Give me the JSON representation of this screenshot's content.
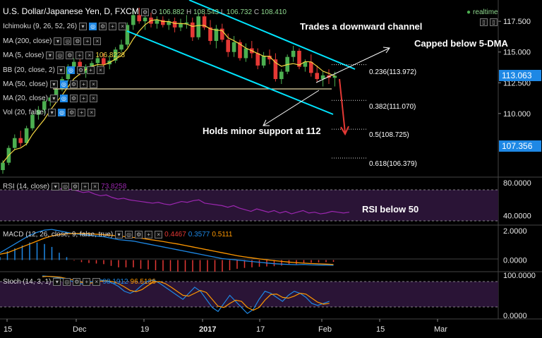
{
  "header": {
    "title": "U.S. Dollar/Japanese Yen, D, FXCM",
    "o_label": "O",
    "o_value": "106.882",
    "h_label": "H",
    "h_value": "108.543",
    "l_label": "L",
    "l_value": "106.732",
    "c_label": "C",
    "c_value": "108.410",
    "realtime": "realtime"
  },
  "indicators": {
    "ichimoku": "Ichimoku (9, 26, 52, 26)",
    "ma200": "MA (200, close)",
    "ma5": "MA (5, close)",
    "ma5_value": "106.8228",
    "bb": "BB (20, close, 2)",
    "ma50": "MA (50, close)",
    "ma20": "MA (20, close)",
    "vol": "Vol (20, false)"
  },
  "annotations": {
    "channel": "Trades a downward channel",
    "capped": "Capped below 5-DMA",
    "support": "Holds minor support at 112",
    "rsi": "RSI below 50"
  },
  "fib_levels": [
    {
      "label": "0.236(113.972)",
      "value": 113.972
    },
    {
      "label": "0.382(111.070)",
      "value": 111.07
    },
    {
      "label": "0.5(108.725)",
      "value": 108.725
    },
    {
      "label": "0.618(106.379)",
      "value": 106.379
    }
  ],
  "price_badges": [
    {
      "label": "113.063",
      "value": 113.063,
      "color": "#1e88e5"
    },
    {
      "label": "107.356",
      "value": 107.356,
      "color": "#1e88e5"
    }
  ],
  "rsi_panel": {
    "label": "RSI (14, close)",
    "value": "73.8258"
  },
  "macd_panel": {
    "label": "MACD (12, 26, close, 9, false, true)",
    "v1": "0.4467",
    "v2": "0.3577",
    "v3": "0.5111"
  },
  "stoch_panel": {
    "label": "Stoch (14, 3, 1)",
    "v1": "98.1912",
    "v2": "96.5136"
  },
  "colors": {
    "up": "#4caf50",
    "down": "#e53935",
    "channel": "#00e5ff",
    "ma": "#f5d742",
    "rsi": "#9c27b0",
    "macd": "#1e88e5",
    "signal": "#ff9800",
    "band": "#3a1a4a"
  },
  "chart_data": [
    {
      "type": "candlestick",
      "title": "U.S. Dollar/Japanese Yen, D, FXCM",
      "ylim": [
        105.0,
        119.0
      ],
      "yticks": [
        {
          "label": "117.500",
          "value": 117.5
        },
        {
          "label": "115.000",
          "value": 115.0
        },
        {
          "label": "112.500",
          "value": 112.5
        },
        {
          "label": "110.000",
          "value": 110.0
        }
      ],
      "x_ticks": [
        "15",
        "Dec",
        "19",
        "2017",
        "17",
        "Feb",
        "15",
        "Mar"
      ],
      "candles": [
        {
          "o": 105.4,
          "h": 106.2,
          "l": 105.1,
          "c": 106.0
        },
        {
          "o": 106.0,
          "h": 107.4,
          "l": 105.8,
          "c": 107.2
        },
        {
          "o": 107.2,
          "h": 108.3,
          "l": 107.0,
          "c": 108.0
        },
        {
          "o": 108.0,
          "h": 108.6,
          "l": 107.3,
          "c": 107.6
        },
        {
          "o": 107.6,
          "h": 109.0,
          "l": 107.4,
          "c": 108.8
        },
        {
          "o": 108.8,
          "h": 110.1,
          "l": 108.6,
          "c": 109.9
        },
        {
          "o": 109.9,
          "h": 110.6,
          "l": 109.5,
          "c": 110.3
        },
        {
          "o": 110.3,
          "h": 111.2,
          "l": 110.0,
          "c": 111.0
        },
        {
          "o": 111.0,
          "h": 111.5,
          "l": 110.6,
          "c": 111.3
        },
        {
          "o": 111.3,
          "h": 112.2,
          "l": 111.1,
          "c": 112.0
        },
        {
          "o": 112.0,
          "h": 113.0,
          "l": 111.8,
          "c": 112.8
        },
        {
          "o": 112.8,
          "h": 114.0,
          "l": 112.6,
          "c": 113.8
        },
        {
          "o": 113.8,
          "h": 114.5,
          "l": 113.4,
          "c": 114.2
        },
        {
          "o": 114.2,
          "h": 114.6,
          "l": 113.1,
          "c": 113.3
        },
        {
          "o": 113.3,
          "h": 114.0,
          "l": 112.9,
          "c": 113.8
        },
        {
          "o": 113.8,
          "h": 114.3,
          "l": 113.5,
          "c": 114.1
        },
        {
          "o": 114.1,
          "h": 114.8,
          "l": 113.7,
          "c": 114.5
        },
        {
          "o": 114.5,
          "h": 114.9,
          "l": 113.8,
          "c": 114.0
        },
        {
          "o": 114.0,
          "h": 114.7,
          "l": 113.6,
          "c": 114.3
        },
        {
          "o": 114.3,
          "h": 115.4,
          "l": 114.1,
          "c": 115.2
        },
        {
          "o": 115.2,
          "h": 116.0,
          "l": 115.0,
          "c": 115.6
        },
        {
          "o": 115.6,
          "h": 117.4,
          "l": 115.4,
          "c": 117.2
        },
        {
          "o": 117.2,
          "h": 118.4,
          "l": 116.8,
          "c": 118.0
        },
        {
          "o": 118.0,
          "h": 118.6,
          "l": 117.3,
          "c": 117.5
        },
        {
          "o": 117.5,
          "h": 118.0,
          "l": 116.8,
          "c": 117.8
        },
        {
          "o": 117.8,
          "h": 118.2,
          "l": 117.0,
          "c": 117.3
        },
        {
          "o": 117.3,
          "h": 117.9,
          "l": 116.9,
          "c": 117.6
        },
        {
          "o": 117.6,
          "h": 117.9,
          "l": 117.0,
          "c": 117.2
        },
        {
          "o": 117.2,
          "h": 117.7,
          "l": 116.8,
          "c": 117.5
        },
        {
          "o": 117.5,
          "h": 117.8,
          "l": 116.6,
          "c": 117.0
        },
        {
          "o": 117.0,
          "h": 117.7,
          "l": 116.7,
          "c": 117.3
        },
        {
          "o": 117.3,
          "h": 118.0,
          "l": 116.9,
          "c": 117.4
        },
        {
          "o": 117.4,
          "h": 117.8,
          "l": 115.9,
          "c": 116.2
        },
        {
          "o": 116.2,
          "h": 118.2,
          "l": 116.0,
          "c": 117.9
        },
        {
          "o": 117.9,
          "h": 118.1,
          "l": 116.8,
          "c": 117.0
        },
        {
          "o": 117.0,
          "h": 117.6,
          "l": 115.6,
          "c": 115.9
        },
        {
          "o": 115.9,
          "h": 117.2,
          "l": 115.3,
          "c": 116.9
        },
        {
          "o": 116.9,
          "h": 117.3,
          "l": 115.8,
          "c": 116.0
        },
        {
          "o": 116.0,
          "h": 116.5,
          "l": 114.6,
          "c": 115.0
        },
        {
          "o": 115.0,
          "h": 116.3,
          "l": 114.6,
          "c": 115.8
        },
        {
          "o": 115.8,
          "h": 116.0,
          "l": 114.3,
          "c": 114.5
        },
        {
          "o": 114.5,
          "h": 115.7,
          "l": 114.2,
          "c": 115.3
        },
        {
          "o": 115.3,
          "h": 115.9,
          "l": 114.5,
          "c": 114.9
        },
        {
          "o": 114.9,
          "h": 115.3,
          "l": 113.6,
          "c": 113.9
        },
        {
          "o": 113.9,
          "h": 115.0,
          "l": 113.7,
          "c": 114.7
        },
        {
          "o": 114.7,
          "h": 115.2,
          "l": 114.0,
          "c": 114.4
        },
        {
          "o": 114.4,
          "h": 114.9,
          "l": 112.6,
          "c": 112.8
        },
        {
          "o": 112.8,
          "h": 113.6,
          "l": 112.4,
          "c": 113.4
        },
        {
          "o": 113.4,
          "h": 114.8,
          "l": 113.2,
          "c": 114.6
        },
        {
          "o": 114.6,
          "h": 115.5,
          "l": 114.2,
          "c": 115.1
        },
        {
          "o": 115.1,
          "h": 115.3,
          "l": 113.6,
          "c": 113.8
        },
        {
          "o": 113.8,
          "h": 114.4,
          "l": 113.4,
          "c": 114.2
        },
        {
          "o": 114.2,
          "h": 114.8,
          "l": 113.0,
          "c": 113.3
        },
        {
          "o": 113.3,
          "h": 113.9,
          "l": 112.6,
          "c": 112.8
        },
        {
          "o": 112.8,
          "h": 113.4,
          "l": 112.2,
          "c": 113.1
        },
        {
          "o": 113.1,
          "h": 113.6,
          "l": 112.4,
          "c": 112.9
        },
        {
          "o": 112.9,
          "h": 113.4,
          "l": 112.2,
          "c": 113.063
        }
      ]
    },
    {
      "type": "line",
      "title": "RSI (14, close)",
      "ylim": [
        30,
        85
      ],
      "yticks": [
        {
          "label": "80.0000",
          "value": 80
        },
        {
          "label": "40.0000",
          "value": 40
        }
      ],
      "values": [
        73,
        71,
        72,
        70,
        68,
        69,
        66,
        64,
        65,
        62,
        60,
        61,
        59,
        58,
        57,
        56,
        55,
        56,
        54,
        53,
        55,
        57,
        56,
        58,
        59,
        55,
        54,
        53,
        52,
        50,
        52,
        49,
        47,
        45,
        48,
        46,
        44,
        46,
        43,
        45,
        42,
        44,
        46,
        43,
        44,
        42,
        43,
        45,
        44,
        43,
        44
      ]
    },
    {
      "type": "line",
      "title": "MACD (12, 26, close, 9, false, true)",
      "ylim": [
        -0.7,
        2.3
      ],
      "yticks": [
        {
          "label": "2.0000",
          "value": 2
        },
        {
          "label": "0.0000",
          "value": 0
        }
      ],
      "series": [
        {
          "name": "MACD",
          "values": [
            0.5,
            0.8,
            1.1,
            1.4,
            1.7,
            1.9,
            2.05,
            2.1,
            2.0,
            1.9,
            1.8,
            1.75,
            1.7,
            1.65,
            1.6,
            1.5,
            1.4,
            1.35,
            1.3,
            1.2,
            1.1,
            1.0,
            0.9,
            0.8,
            0.7,
            0.6,
            0.5,
            0.4,
            0.3,
            0.2,
            0.1,
            0.05,
            0.0,
            -0.05,
            -0.1,
            -0.15,
            -0.2,
            -0.25,
            -0.28,
            -0.3,
            -0.32,
            -0.3,
            -0.33,
            -0.34,
            -0.35,
            -0.36
          ]
        },
        {
          "name": "Signal",
          "values": [
            0.4,
            0.5,
            0.7,
            0.9,
            1.1,
            1.3,
            1.5,
            1.65,
            1.75,
            1.8,
            1.82,
            1.82,
            1.8,
            1.77,
            1.74,
            1.7,
            1.65,
            1.6,
            1.55,
            1.5,
            1.42,
            1.35,
            1.27,
            1.18,
            1.1,
            1.0,
            0.9,
            0.8,
            0.7,
            0.6,
            0.5,
            0.4,
            0.3,
            0.22,
            0.15,
            0.08,
            0.02,
            -0.04,
            -0.09,
            -0.14,
            -0.18,
            -0.21,
            -0.24,
            -0.26,
            -0.28,
            -0.3
          ]
        }
      ]
    },
    {
      "type": "line",
      "title": "Stoch (14, 3, 1)",
      "ylim": [
        -5,
        105
      ],
      "yticks": [
        {
          "label": "100.0000",
          "value": 100
        },
        {
          "label": "0.0000",
          "value": 0
        }
      ],
      "series": [
        {
          "name": "%K",
          "values": [
            98,
            97,
            95,
            93,
            90,
            85,
            80,
            78,
            82,
            86,
            88,
            85,
            80,
            72,
            60,
            55,
            62,
            75,
            85,
            88,
            80,
            70,
            60,
            50,
            40,
            55,
            70,
            60,
            40,
            20,
            10,
            30,
            50,
            35,
            20,
            5,
            15,
            40,
            60,
            55,
            45,
            35,
            50,
            60,
            55,
            45,
            30,
            25,
            30,
            35
          ]
        },
        {
          "name": "%D",
          "values": [
            96,
            97,
            96,
            95,
            92,
            89,
            85,
            81,
            80,
            82,
            85,
            86,
            84,
            79,
            71,
            62,
            59,
            64,
            74,
            83,
            84,
            79,
            70,
            60,
            50,
            48,
            55,
            62,
            57,
            40,
            23,
            20,
            30,
            38,
            35,
            20,
            13,
            20,
            38,
            52,
            53,
            45,
            43,
            48,
            55,
            53,
            43,
            33,
            28,
            30
          ]
        }
      ]
    }
  ]
}
